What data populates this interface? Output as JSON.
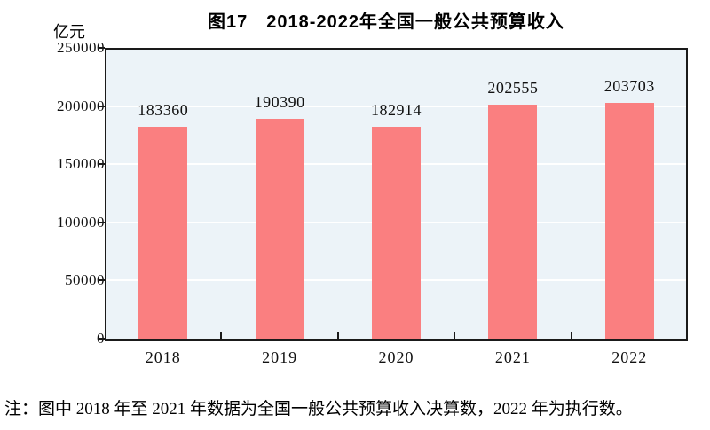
{
  "page": {
    "title": "图17　2018-2022年全国一般公共预算收入",
    "unit_label": "亿元",
    "note": "注：图中 2018 年至 2021 年数据为全国一般公共预算收入决算数，2022 年为执行数。"
  },
  "chart_data": {
    "type": "bar",
    "title": "图17　2018-2022年全国一般公共预算收入",
    "xlabel": "",
    "ylabel": "亿元",
    "categories": [
      "2018",
      "2019",
      "2020",
      "2021",
      "2022"
    ],
    "values": [
      183360,
      190390,
      182914,
      202555,
      203703
    ],
    "data_labels": [
      "183360",
      "190390",
      "182914",
      "202555",
      "203703"
    ],
    "ylim": [
      0,
      250000
    ],
    "yticks": [
      0,
      50000,
      100000,
      150000,
      200000,
      250000
    ],
    "grid": "horizontal",
    "legend": "none",
    "note": "注：图中 2018 年至 2021 年数据为全国一般公共预算收入决算数，2022 年为执行数。",
    "colors": {
      "bar": "#fa7f80",
      "plot_background": "#ecf3f8",
      "gridline": "#ffffff",
      "axis": "#1a1a1a",
      "text": "#111111"
    }
  }
}
